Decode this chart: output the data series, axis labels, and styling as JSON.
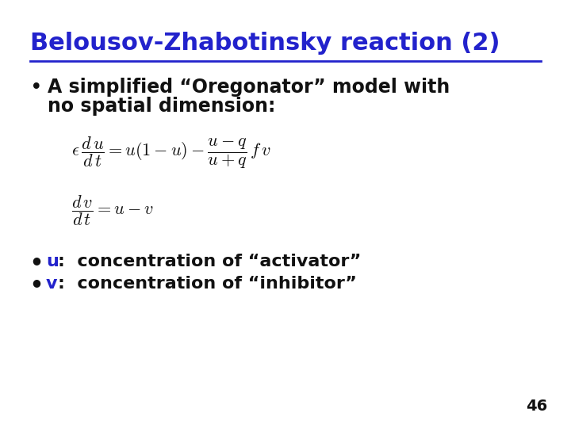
{
  "title": "Belousov-Zhabotinsky reaction (2)",
  "title_color": "#2222cc",
  "title_fontsize": 22,
  "bg_color": "#ffffff",
  "line_color": "#2222cc",
  "bullet_char": "•",
  "bullet_text_line1": "A simplified “Oregonator” model with",
  "bullet_text_line2": "no spatial dimension:",
  "bullet_color": "#111111",
  "bullet_fontsize": 17,
  "eq_color": "#111111",
  "eq_fontsize": 14,
  "item1_u": "u",
  "item1_rest": ":  concentration of “activator”",
  "item2_v": "v",
  "item2_rest": ":  concentration of “inhibitor”",
  "item_color": "#111111",
  "item_blue": "#2222cc",
  "item_fontsize": 16,
  "page_number": "46",
  "page_color": "#111111",
  "page_fontsize": 14,
  "small_bullet": "●"
}
